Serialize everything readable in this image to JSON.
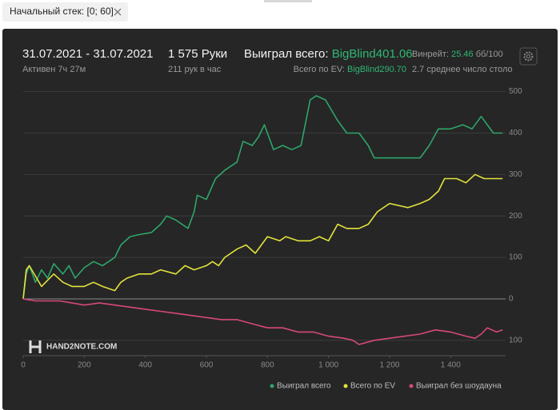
{
  "filter": {
    "label": "Начальный стек: [0; 60]"
  },
  "header": {
    "date_range": "31.07.2021 - 31.07.2021",
    "active": "Активен 7ч 27м",
    "hands": "1 575 Руки",
    "hands_per_hour": "211 рук в час",
    "won_label": "Выиграл всего:",
    "won_value": "BigBlind401.06",
    "ev_label": "Всего по EV:",
    "ev_value": "BigBlind290.70",
    "winrate_label": "Винрейт:",
    "winrate_value": "25.46",
    "winrate_unit": "бб/100",
    "tables": "2.7 среднее число столо"
  },
  "watermark": "HAND2NOTE.COM",
  "chart_data": {
    "type": "line",
    "xlim": [
      0,
      1580
    ],
    "ylim": [
      -137,
      505
    ],
    "xticks": [
      0,
      200,
      400,
      600,
      800,
      {
        "value": 1000,
        "label": "1 000"
      },
      {
        "value": 1200,
        "label": "1 200"
      },
      {
        "value": 1400,
        "label": "1 400"
      }
    ],
    "yticks": [
      500,
      400,
      300,
      200,
      100,
      0,
      {
        "value": -100,
        "label": "100"
      }
    ],
    "grid": true,
    "legend": "bottom-right",
    "series": [
      {
        "name": "Выиграл всего",
        "color": "#2ea56a",
        "x": [
          0,
          10,
          20,
          40,
          60,
          80,
          100,
          130,
          150,
          170,
          200,
          230,
          260,
          300,
          320,
          350,
          380,
          420,
          450,
          470,
          500,
          540,
          560,
          570,
          600,
          630,
          660,
          700,
          720,
          750,
          770,
          790,
          820,
          850,
          880,
          910,
          940,
          960,
          990,
          1030,
          1060,
          1100,
          1130,
          1150,
          1200,
          1260,
          1300,
          1330,
          1360,
          1400,
          1440,
          1470,
          1500,
          1520,
          1540,
          1570
        ],
        "values": [
          0,
          60,
          80,
          40,
          70,
          50,
          85,
          60,
          80,
          50,
          75,
          90,
          80,
          100,
          130,
          150,
          155,
          160,
          180,
          200,
          190,
          170,
          210,
          250,
          240,
          290,
          310,
          330,
          380,
          370,
          390,
          420,
          360,
          370,
          360,
          370,
          480,
          490,
          480,
          430,
          400,
          400,
          370,
          340,
          340,
          340,
          340,
          370,
          410,
          410,
          420,
          410,
          440,
          420,
          400,
          400
        ]
      },
      {
        "name": "Всего по EV",
        "color": "#e2e23c",
        "x": [
          0,
          10,
          20,
          60,
          100,
          130,
          160,
          200,
          230,
          260,
          300,
          320,
          340,
          380,
          420,
          450,
          500,
          530,
          560,
          600,
          620,
          640,
          660,
          700,
          730,
          760,
          800,
          840,
          860,
          900,
          940,
          970,
          1000,
          1030,
          1060,
          1100,
          1130,
          1160,
          1200,
          1260,
          1300,
          1330,
          1360,
          1380,
          1420,
          1450,
          1480,
          1510,
          1540,
          1570
        ],
        "values": [
          0,
          70,
          80,
          30,
          60,
          40,
          30,
          30,
          40,
          30,
          20,
          40,
          50,
          60,
          60,
          70,
          60,
          80,
          70,
          80,
          90,
          80,
          100,
          120,
          130,
          110,
          150,
          140,
          150,
          140,
          140,
          150,
          140,
          180,
          170,
          170,
          180,
          210,
          230,
          220,
          230,
          240,
          260,
          290,
          290,
          280,
          300,
          290,
          290,
          290
        ]
      },
      {
        "name": "Выиграл без шоудауна",
        "color": "#d6487c",
        "x": [
          0,
          40,
          80,
          120,
          160,
          200,
          250,
          300,
          350,
          400,
          450,
          500,
          550,
          600,
          650,
          700,
          750,
          800,
          850,
          900,
          950,
          1000,
          1050,
          1080,
          1100,
          1150,
          1200,
          1250,
          1300,
          1350,
          1400,
          1450,
          1480,
          1500,
          1520,
          1550,
          1570
        ],
        "values": [
          0,
          -5,
          -5,
          -5,
          -10,
          -15,
          -10,
          -15,
          -20,
          -25,
          -30,
          -35,
          -40,
          -45,
          -50,
          -50,
          -60,
          -70,
          -70,
          -80,
          -80,
          -90,
          -95,
          -100,
          -110,
          -100,
          -95,
          -90,
          -85,
          -75,
          -80,
          -90,
          -95,
          -85,
          -70,
          -80,
          -75
        ]
      }
    ]
  }
}
